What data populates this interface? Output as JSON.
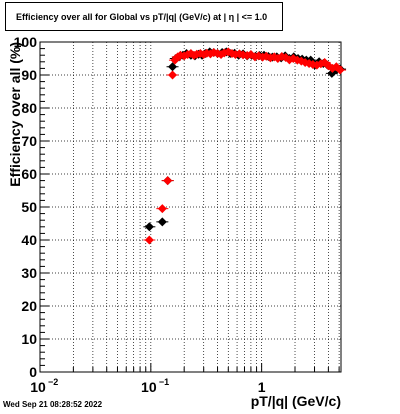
{
  "chart_data": {
    "type": "scatter",
    "title": "Efficiency over all for Global vs pT/|q| (GeV/c) at |  η  | <= 1.0",
    "xlabel": "pT/|q| (GeV/c)",
    "ylabel": "Efficiency over all (%)",
    "xscale": "log",
    "xlim": [
      0.01,
      5.2
    ],
    "ylim": [
      0,
      100
    ],
    "x_tick_labels": [
      {
        "value": 0.01,
        "base": "10",
        "exp": "−2"
      },
      {
        "value": 0.1,
        "base": "10",
        "exp": "−1"
      },
      {
        "value": 1,
        "base": "1",
        "exp": ""
      }
    ],
    "y_ticks": [
      0,
      10,
      20,
      30,
      40,
      50,
      60,
      70,
      80,
      90,
      100
    ],
    "grid": true,
    "legend": "none",
    "series": [
      {
        "color": "#000000",
        "marker": "diamond",
        "x": [
          0.097,
          0.127,
          0.142,
          0.157,
          0.168,
          0.18,
          0.195,
          0.21,
          0.23,
          0.25,
          0.27,
          0.29,
          0.31,
          0.34,
          0.37,
          0.4,
          0.44,
          0.48,
          0.52,
          0.57,
          0.62,
          0.68,
          0.74,
          0.81,
          0.88,
          0.96,
          1.05,
          1.15,
          1.25,
          1.37,
          1.5,
          1.63,
          1.78,
          1.95,
          2.13,
          2.32,
          2.53,
          2.77,
          3.02,
          3.3,
          3.6,
          3.93,
          4.3,
          4.7,
          5.1
        ],
        "y": [
          44,
          45.5,
          58,
          92.5,
          95,
          95.5,
          96,
          96.5,
          96,
          95.8,
          96.3,
          96,
          96.5,
          97,
          96.8,
          96.5,
          96.8,
          97,
          96.5,
          96.6,
          96,
          96.4,
          95.8,
          96,
          95.7,
          95.9,
          96,
          95.6,
          95.4,
          95.5,
          95.2,
          95.8,
          95,
          95.5,
          95,
          94.8,
          94.5,
          94.5,
          93,
          94,
          93.5,
          93,
          90.5,
          91.5,
          91.8
        ]
      },
      {
        "color": "#ff0000",
        "marker": "diamond",
        "x": [
          0.097,
          0.127,
          0.142,
          0.157,
          0.165,
          0.175,
          0.185,
          0.2,
          0.215,
          0.23,
          0.245,
          0.26,
          0.28,
          0.3,
          0.32,
          0.345,
          0.37,
          0.4,
          0.43,
          0.46,
          0.5,
          0.54,
          0.58,
          0.63,
          0.68,
          0.74,
          0.8,
          0.87,
          0.94,
          1.02,
          1.1,
          1.2,
          1.3,
          1.4,
          1.52,
          1.65,
          1.78,
          1.93,
          2.1,
          2.28,
          2.47,
          2.68,
          2.9,
          3.15,
          3.42,
          3.7,
          4.02,
          4.35,
          4.72,
          5.1
        ],
        "y": [
          40,
          49.5,
          58,
          90,
          94.5,
          95.5,
          96,
          95.8,
          96.2,
          96.5,
          96,
          96.3,
          96.5,
          96.2,
          96.6,
          96.4,
          96.8,
          96.5,
          96.2,
          96.7,
          97,
          96.5,
          96.2,
          96.4,
          96.1,
          95.9,
          96.2,
          95.5,
          95.8,
          95.4,
          95.7,
          95.2,
          95.5,
          95,
          95.6,
          95.3,
          94.6,
          95,
          94.5,
          94.2,
          93.8,
          93.5,
          93.2,
          93,
          93.4,
          93.8,
          92.8,
          92,
          92.5,
          91.5
        ]
      }
    ]
  },
  "footer": {
    "timestamp": "Wed Sep 21 08:28:52 2022"
  }
}
